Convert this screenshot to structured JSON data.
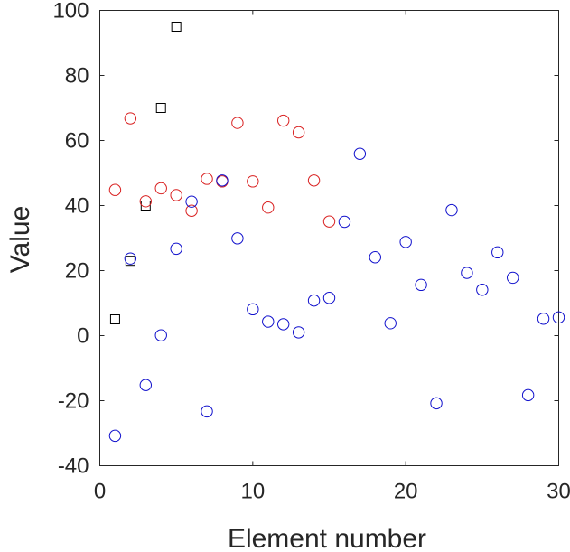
{
  "chart_data": {
    "type": "scatter",
    "title": "",
    "xlabel": "Element number",
    "ylabel": "Value",
    "xlim": [
      0,
      30
    ],
    "ylim": [
      -40,
      100
    ],
    "xticks": [
      "0",
      "10",
      "20",
      "30"
    ],
    "yticks": [
      "-40",
      "-20",
      "0",
      "20",
      "40",
      "60",
      "80",
      "100"
    ],
    "grid": false,
    "legend": "none",
    "series": [
      {
        "marker": "square",
        "color": "#000000",
        "x": [
          1,
          2,
          3,
          4,
          5
        ],
        "y": [
          5,
          23,
          40,
          70,
          95
        ]
      },
      {
        "marker": "circle",
        "color": "#d92020",
        "x": [
          1,
          2,
          3,
          4,
          5,
          6,
          7,
          8,
          9,
          10,
          11,
          12,
          13,
          14,
          15
        ],
        "y": [
          44.8,
          66.8,
          41.3,
          45.3,
          43.2,
          38.4,
          48.2,
          47.4,
          65.4,
          47.4,
          39.4,
          66.1,
          62.5,
          47.7,
          35.1
        ]
      },
      {
        "marker": "circle",
        "color": "#1010cc",
        "x": [
          1,
          2,
          3,
          4,
          5,
          6,
          7,
          8,
          9,
          10,
          11,
          12,
          13,
          14,
          15,
          16,
          17,
          18,
          19,
          20,
          21,
          22,
          23,
          24,
          25,
          26,
          27,
          28,
          29,
          30
        ],
        "y": [
          -30.8,
          23.7,
          -15.2,
          0.1,
          26.7,
          41.2,
          -23.3,
          47.7,
          29.9,
          8.1,
          4.3,
          3.5,
          1.0,
          10.8,
          11.6,
          35.0,
          55.9,
          24.1,
          3.8,
          28.8,
          15.6,
          -20.8,
          38.6,
          19.3,
          14.1,
          25.6,
          17.8,
          -18.3,
          5.2,
          5.6
        ]
      }
    ]
  }
}
